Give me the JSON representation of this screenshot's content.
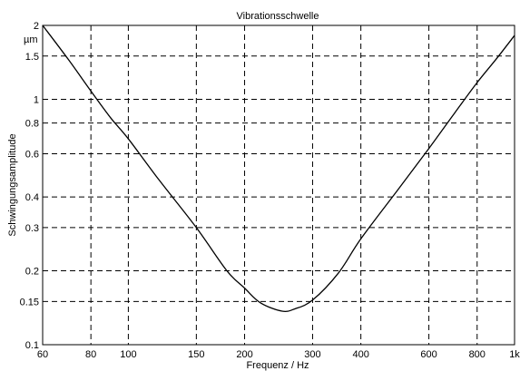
{
  "chart_data": {
    "type": "line",
    "title": "Vibrationsschwelle",
    "xlabel": "Frequenz  /  Hz",
    "ylabel": "Schwingungsamplitude",
    "yunit": "µm",
    "xscale": "log",
    "yscale": "log",
    "xlim": [
      60,
      1000
    ],
    "ylim": [
      0.1,
      2
    ],
    "grid": true,
    "xticks": [
      {
        "value": 60,
        "label": "60"
      },
      {
        "value": 80,
        "label": "80"
      },
      {
        "value": 100,
        "label": "100"
      },
      {
        "value": 150,
        "label": "150"
      },
      {
        "value": 200,
        "label": "200"
      },
      {
        "value": 300,
        "label": "300"
      },
      {
        "value": 400,
        "label": "400"
      },
      {
        "value": 600,
        "label": "600"
      },
      {
        "value": 800,
        "label": "800"
      },
      {
        "value": 1000,
        "label": "1k"
      }
    ],
    "yticks": [
      {
        "value": 0.1,
        "label": "0.1"
      },
      {
        "value": 0.15,
        "label": "0.15"
      },
      {
        "value": 0.2,
        "label": "0.2"
      },
      {
        "value": 0.3,
        "label": "0.3"
      },
      {
        "value": 0.4,
        "label": "0.4"
      },
      {
        "value": 0.6,
        "label": "0.6"
      },
      {
        "value": 0.8,
        "label": "0.8"
      },
      {
        "value": 1,
        "label": "1"
      },
      {
        "value": 1.5,
        "label": "1.5"
      },
      {
        "value": 2,
        "label": "2"
      }
    ],
    "series": [
      {
        "color": "#000000",
        "x": [
          60,
          70,
          80,
          90,
          100,
          120,
          150,
          180,
          200,
          220,
          250,
          270,
          300,
          350,
          400,
          500,
          600,
          700,
          800,
          900,
          1000
        ],
        "y": [
          2.0,
          1.45,
          1.08,
          0.84,
          0.69,
          0.47,
          0.3,
          0.2,
          0.17,
          0.148,
          0.137,
          0.14,
          0.152,
          0.196,
          0.27,
          0.43,
          0.63,
          0.88,
          1.17,
          1.47,
          1.82
        ]
      }
    ]
  }
}
